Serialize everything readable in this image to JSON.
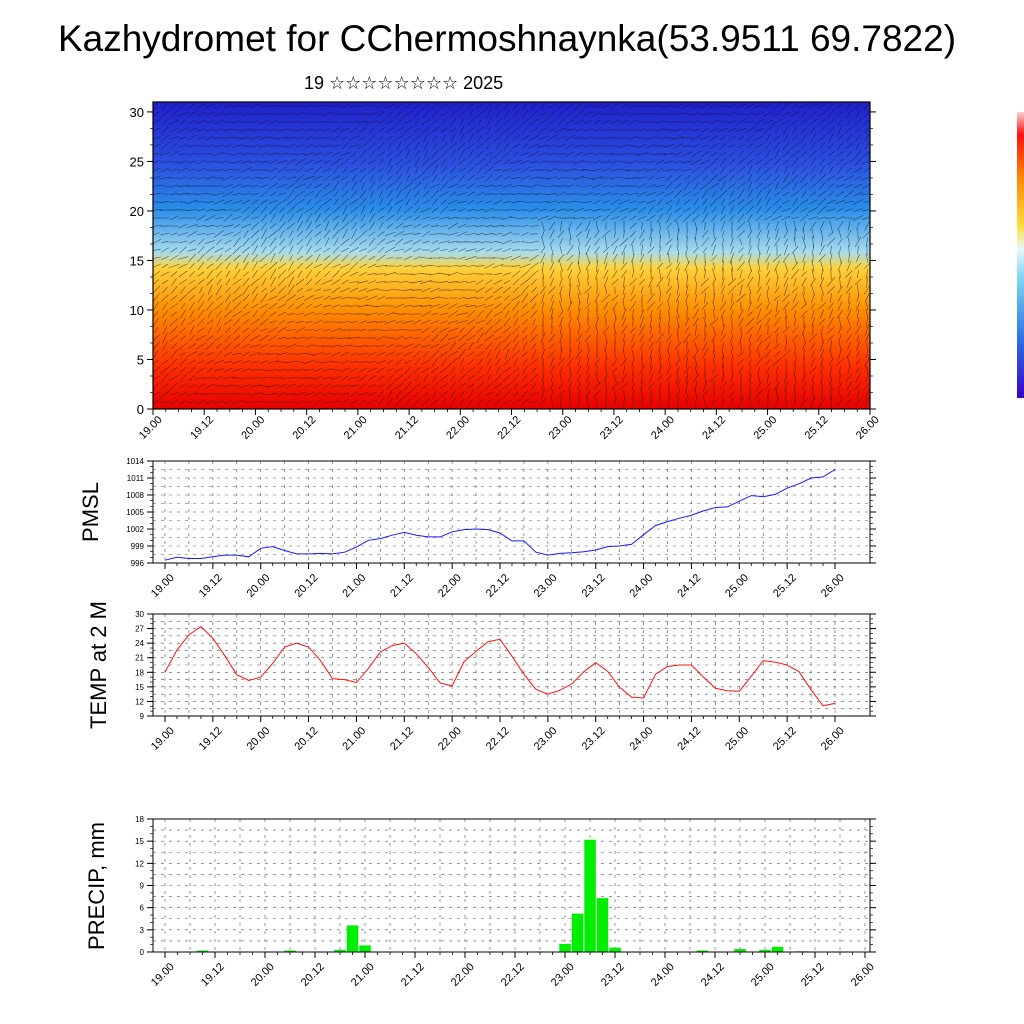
{
  "title": "Kazhydromet for CChermoshnaynka(53.9511 69.7822)",
  "subtitle": "19 ☆☆☆☆☆☆☆☆ 2025",
  "x_tick_labels": [
    "19.00",
    "19.12",
    "20.00",
    "20.12",
    "21.00",
    "21.12",
    "22.00",
    "22.12",
    "23.00",
    "23.12",
    "24.00",
    "24.12",
    "25.00",
    "25.12",
    "26.00"
  ],
  "colors": {
    "pmsl_line": "#1a1aff",
    "temp_line": "#ff1010",
    "precip_bar": "#00ee00",
    "grid": "#555555"
  },
  "chart_data": [
    {
      "type": "heatmap",
      "panel": "cross-section",
      "y_ticks": [
        "0",
        "5",
        "10",
        "15",
        "20",
        "25",
        "30"
      ],
      "ylim": [
        0,
        31
      ],
      "colormap": [
        "#2222cc",
        "#1e88e5",
        "#9ad4ef",
        "#ffd040",
        "#ff9000",
        "#ff2a00",
        "#ee0000"
      ],
      "value_range": "blue aloft (cold) to red near surface (warm)",
      "overlay": "wind vectors"
    },
    {
      "type": "line",
      "panel": "pmsl",
      "ylabel": "PMSL",
      "y_ticks": [
        "996",
        "999",
        "1002",
        "1005",
        "1008",
        "1011",
        "1014"
      ],
      "ylim": [
        996,
        1014
      ],
      "x": [
        0,
        3,
        6,
        9,
        12,
        15,
        18,
        21,
        24,
        27,
        30,
        33,
        36,
        39,
        42,
        45,
        48,
        51,
        54,
        57,
        60,
        63,
        66,
        69,
        72,
        75,
        78,
        81,
        84,
        87,
        90,
        93,
        96,
        99,
        102,
        105,
        108,
        111,
        114,
        117,
        120,
        123,
        126,
        129,
        132,
        135,
        138,
        141,
        144,
        147,
        150,
        153,
        156,
        159,
        162,
        165,
        168
      ],
      "values": [
        996.5,
        997,
        996.8,
        996.8,
        997.1,
        997.4,
        997.4,
        997.1,
        998.6,
        998.9,
        998.2,
        997.6,
        997.6,
        997.7,
        997.6,
        997.9,
        998.8,
        1000,
        1000.3,
        1000.9,
        1001.4,
        1000.9,
        1000.6,
        1000.6,
        1001.5,
        1001.9,
        1002,
        1001.9,
        1001.3,
        999.9,
        999.9,
        997.9,
        997.4,
        997.7,
        997.8,
        998,
        998.3,
        998.9,
        999,
        999.3,
        1001,
        1002.6,
        1003.3,
        1003.9,
        1004.4,
        1005.2,
        1005.8,
        1005.9,
        1006.9,
        1007.9,
        1007.7,
        1008.1,
        1009.2,
        1010,
        1011,
        1011.2,
        1012.5
      ]
    },
    {
      "type": "line",
      "panel": "temp",
      "ylabel": "TEMP at 2 M",
      "y_ticks": [
        "9",
        "12",
        "15",
        "18",
        "21",
        "24",
        "27",
        "30"
      ],
      "ylim": [
        9,
        30
      ],
      "x": [
        0,
        3,
        6,
        9,
        12,
        15,
        18,
        21,
        24,
        27,
        30,
        33,
        36,
        39,
        42,
        45,
        48,
        51,
        54,
        57,
        60,
        63,
        66,
        69,
        72,
        75,
        78,
        81,
        84,
        87,
        90,
        93,
        96,
        99,
        102,
        105,
        108,
        111,
        114,
        117,
        120,
        123,
        126,
        129,
        132,
        135,
        138,
        141,
        144,
        147,
        150,
        153,
        156,
        159,
        162,
        165,
        168
      ],
      "values": [
        18,
        22.6,
        25.7,
        27.4,
        25,
        21.4,
        17.5,
        16.3,
        17,
        19.8,
        23.2,
        24,
        23.2,
        20.4,
        16.7,
        16.5,
        15.9,
        18.8,
        22.2,
        23.5,
        24,
        21.8,
        19,
        15.8,
        15.2,
        20.2,
        22.3,
        24.3,
        24.8,
        21.3,
        17.6,
        14.5,
        13.5,
        14.3,
        15.6,
        18.1,
        20,
        18.2,
        14.9,
        12.9,
        12.7,
        17.6,
        19.2,
        19.5,
        19.5,
        17,
        14.7,
        14.2,
        14.1,
        17.2,
        20.4,
        20.1,
        19.5,
        18.1,
        14.4,
        11.1,
        11.6
      ]
    },
    {
      "type": "bar",
      "panel": "precip",
      "ylabel": "PRECIP, mm",
      "y_ticks": [
        "0",
        "3",
        "6",
        "9",
        "12",
        "15",
        "18"
      ],
      "ylim": [
        0,
        18
      ],
      "x": [
        0,
        3,
        6,
        9,
        12,
        15,
        18,
        21,
        24,
        27,
        30,
        33,
        36,
        39,
        42,
        45,
        48,
        51,
        54,
        57,
        60,
        63,
        66,
        69,
        72,
        75,
        78,
        81,
        84,
        87,
        90,
        93,
        96,
        99,
        102,
        105,
        108,
        111,
        114,
        117,
        120,
        123,
        126,
        129,
        132,
        135,
        138,
        141,
        144,
        147,
        150,
        153,
        156,
        159,
        162,
        165
      ],
      "values": [
        0,
        0,
        0,
        0.2,
        0,
        0,
        0,
        0,
        0,
        0,
        0.2,
        0,
        0,
        0,
        0.3,
        3.6,
        0.9,
        0,
        0,
        0,
        0,
        0,
        0,
        0,
        0,
        0,
        0,
        0,
        0,
        0,
        0,
        0,
        1.1,
        5.2,
        15.2,
        7.3,
        0.6,
        0,
        0,
        0,
        0,
        0,
        0,
        0.2,
        0,
        0,
        0.4,
        0,
        0.3,
        0.7,
        0,
        0.1,
        0,
        0,
        0,
        0
      ]
    }
  ]
}
